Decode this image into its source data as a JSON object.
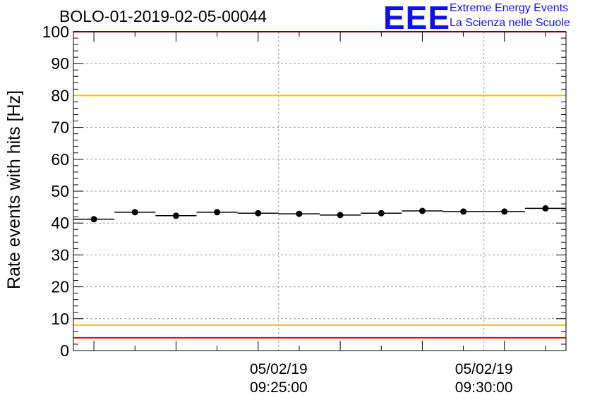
{
  "header": {
    "title": "BOLO-01-2019-02-05-00044",
    "logo_mark": "EEE",
    "logo_line1": "Extreme Energy Events",
    "logo_line2": "La Scienza nelle Scuole"
  },
  "chart_data": {
    "type": "scatter",
    "title": "BOLO-01-2019-02-05-00044",
    "xlabel": "",
    "ylabel": "Rate events with hits [Hz]",
    "ylim": [
      0,
      100
    ],
    "xlim": [
      "09:20:00",
      "09:32:00"
    ],
    "grid": true,
    "yticks": [
      "0",
      "10",
      "20",
      "30",
      "40",
      "50",
      "60",
      "70",
      "80",
      "90",
      "100"
    ],
    "xtick_labels": [
      {
        "x": "09:25:00",
        "date": "05/02/19",
        "time": "09:25:00"
      },
      {
        "x": "09:30:00",
        "date": "05/02/19",
        "time": "09:30:00"
      }
    ],
    "points": [
      {
        "x": "09:20:30",
        "y": 41.2
      },
      {
        "x": "09:21:30",
        "y": 43.4
      },
      {
        "x": "09:22:30",
        "y": 42.3
      },
      {
        "x": "09:23:30",
        "y": 43.4
      },
      {
        "x": "09:24:30",
        "y": 43.1
      },
      {
        "x": "09:25:30",
        "y": 42.9
      },
      {
        "x": "09:26:30",
        "y": 42.5
      },
      {
        "x": "09:27:30",
        "y": 43.1
      },
      {
        "x": "09:28:30",
        "y": 43.8
      },
      {
        "x": "09:29:30",
        "y": 43.6
      },
      {
        "x": "09:30:30",
        "y": 43.6
      },
      {
        "x": "09:31:30",
        "y": 44.6
      }
    ],
    "bin_width_seconds": 60,
    "reference_lines": [
      {
        "y": 100,
        "color": "#ee0000"
      },
      {
        "y": 80,
        "color": "#e8c800"
      },
      {
        "y": 8,
        "color": "#e8c800"
      },
      {
        "y": 4,
        "color": "#ee0000"
      }
    ]
  }
}
